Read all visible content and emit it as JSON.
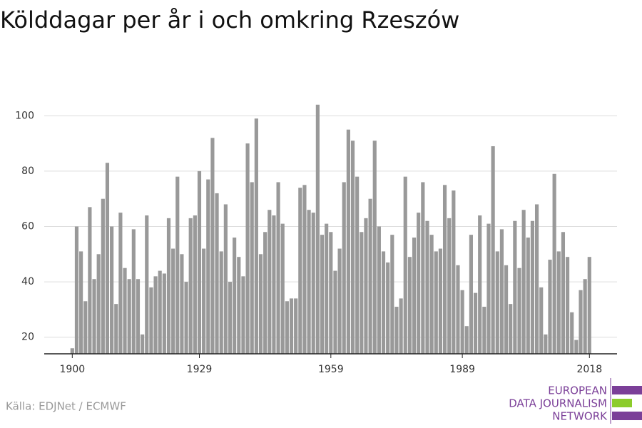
{
  "chart_data": {
    "type": "bar",
    "title": "Kölddagar per år i och omkring Rzeszów",
    "x": [
      1900,
      1901,
      1902,
      1903,
      1904,
      1905,
      1906,
      1907,
      1908,
      1909,
      1910,
      1911,
      1912,
      1913,
      1914,
      1915,
      1916,
      1917,
      1918,
      1919,
      1920,
      1921,
      1922,
      1923,
      1924,
      1925,
      1926,
      1927,
      1928,
      1929,
      1930,
      1931,
      1932,
      1933,
      1934,
      1935,
      1936,
      1937,
      1938,
      1939,
      1940,
      1941,
      1942,
      1943,
      1944,
      1945,
      1946,
      1947,
      1948,
      1949,
      1950,
      1951,
      1952,
      1953,
      1954,
      1955,
      1956,
      1957,
      1958,
      1959,
      1960,
      1961,
      1962,
      1963,
      1964,
      1965,
      1966,
      1967,
      1968,
      1969,
      1970,
      1971,
      1972,
      1973,
      1974,
      1975,
      1976,
      1977,
      1978,
      1979,
      1980,
      1981,
      1982,
      1983,
      1984,
      1985,
      1986,
      1987,
      1988,
      1989,
      1990,
      1991,
      1992,
      1993,
      1994,
      1995,
      1996,
      1997,
      1998,
      1999,
      2000,
      2001,
      2002,
      2003,
      2004,
      2005,
      2006,
      2007,
      2008,
      2009,
      2010,
      2011,
      2012,
      2013,
      2014,
      2015,
      2016,
      2017,
      2018
    ],
    "values": [
      16,
      60,
      51,
      33,
      67,
      41,
      50,
      70,
      83,
      60,
      32,
      65,
      45,
      41,
      59,
      41,
      21,
      64,
      38,
      42,
      44,
      43,
      63,
      52,
      78,
      50,
      40,
      63,
      64,
      80,
      52,
      77,
      92,
      72,
      51,
      68,
      40,
      56,
      49,
      42,
      90,
      76,
      99,
      50,
      58,
      66,
      64,
      76,
      61,
      33,
      34,
      34,
      74,
      75,
      66,
      65,
      104,
      57,
      61,
      58,
      44,
      52,
      76,
      95,
      91,
      78,
      58,
      63,
      70,
      91,
      60,
      51,
      47,
      57,
      31,
      34,
      78,
      49,
      56,
      65,
      76,
      62,
      57,
      51,
      52,
      75,
      63,
      73,
      46,
      37,
      24,
      57,
      36,
      64,
      31,
      61,
      89,
      51,
      59,
      46,
      32,
      62,
      45,
      66,
      56,
      62,
      68,
      38,
      21,
      48,
      79,
      51,
      58,
      49,
      29,
      19,
      37,
      41,
      49
    ],
    "color": "#999999",
    "xlim": [
      1893.6,
      2024.3
    ],
    "xticks": [
      1900,
      1929,
      1959,
      1989,
      2018
    ],
    "ylim": [
      14,
      106
    ],
    "yticks": [
      20,
      40,
      60,
      80,
      100
    ],
    "grid": true,
    "source": "Källa: EDJNet / ECMWF"
  },
  "logo": {
    "lines": [
      "EUROPEAN",
      "DATA JOURNALISM",
      "NETWORK"
    ]
  }
}
